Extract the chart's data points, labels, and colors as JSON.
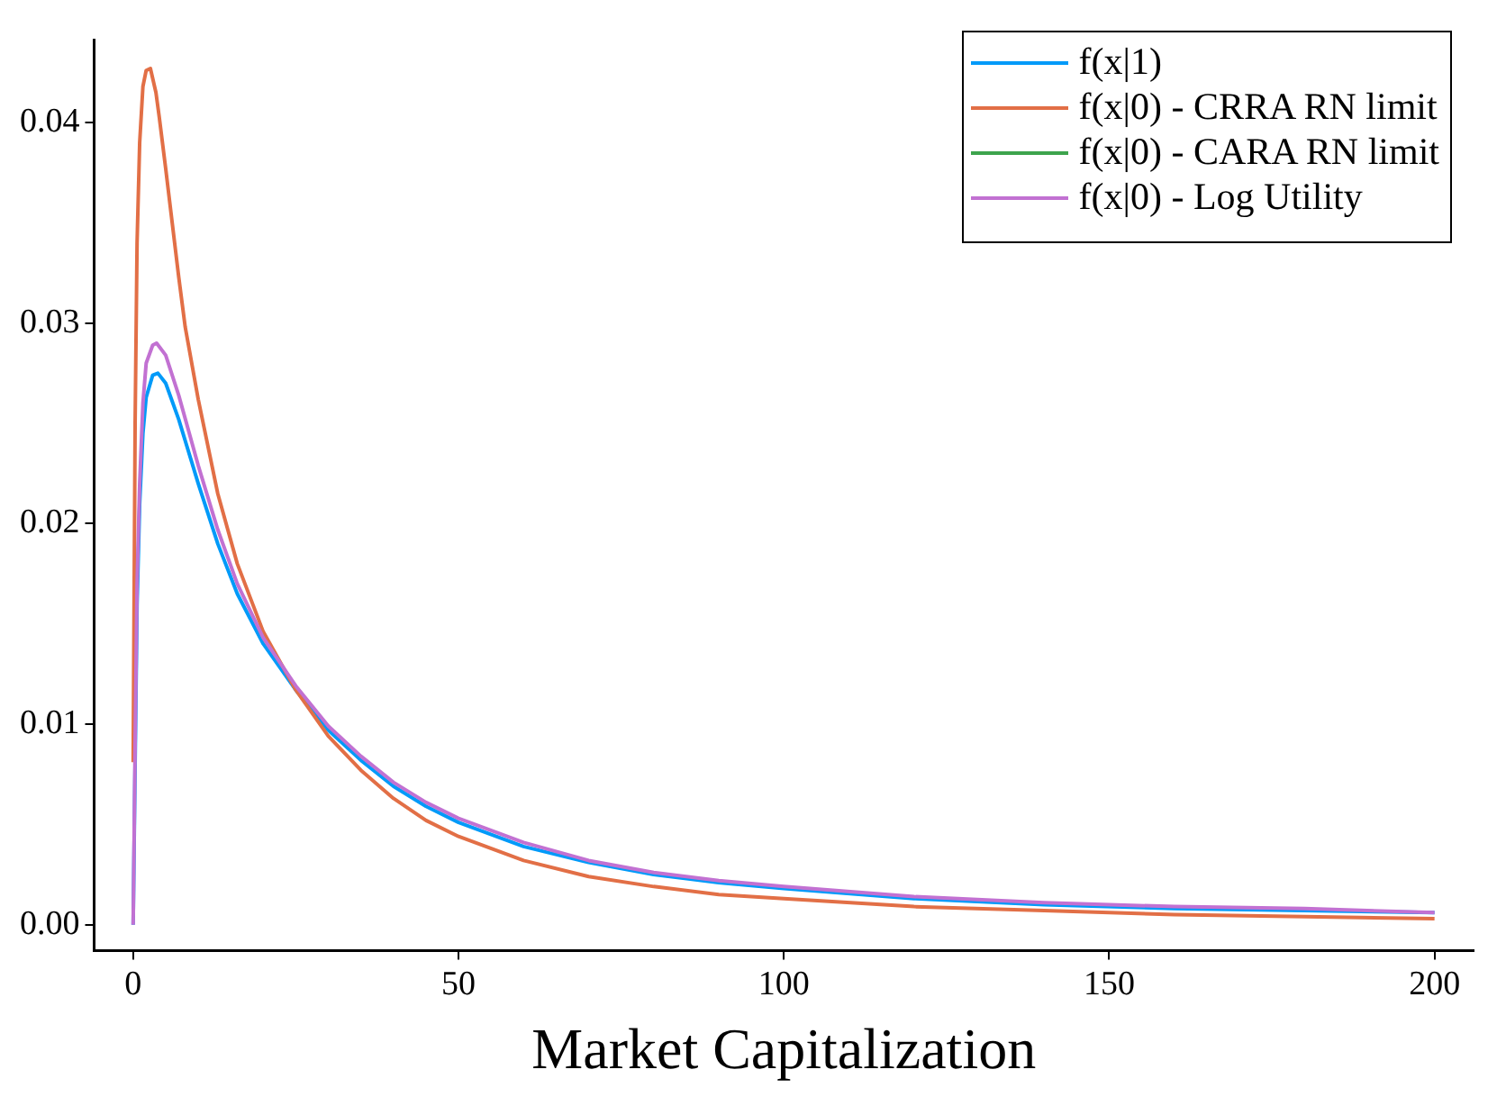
{
  "chart_data": {
    "type": "line",
    "xlabel": "Market Capitalization",
    "xlim": [
      -6,
      206
    ],
    "ylim": [
      -0.0013,
      0.0441
    ],
    "xticks": [
      0,
      50,
      100,
      150,
      200
    ],
    "yticks": [
      {
        "value": 0,
        "label": "0.00"
      },
      {
        "value": 0.01,
        "label": "0.01"
      },
      {
        "value": 0.02,
        "label": "0.02"
      },
      {
        "value": 0.03,
        "label": "0.03"
      },
      {
        "value": 0.04,
        "label": "0.04"
      }
    ],
    "grid": false,
    "legend": "top right",
    "marker": "none",
    "line_style": "solid",
    "series": [
      {
        "name": "f(x|1)",
        "color": "#009af9",
        "x": [
          0,
          0.3,
          0.6,
          1,
          1.5,
          2,
          3,
          3.8,
          5,
          7,
          10,
          13,
          16,
          20,
          25,
          30,
          35,
          40,
          45,
          50,
          60,
          70,
          80,
          90,
          100,
          120,
          140,
          160,
          180,
          200
        ],
        "values": [
          0,
          0.008,
          0.016,
          0.021,
          0.0245,
          0.0263,
          0.0274,
          0.0275,
          0.027,
          0.0252,
          0.022,
          0.019,
          0.0165,
          0.014,
          0.0117,
          0.0097,
          0.0082,
          0.0069,
          0.0059,
          0.0051,
          0.0039,
          0.0031,
          0.0025,
          0.0021,
          0.0018,
          0.0013,
          0.001,
          0.0008,
          0.0007,
          0.0006
        ]
      },
      {
        "name": "f(x|0) - CRRA RN limit",
        "color": "#e26f46",
        "x": [
          0,
          0.3,
          0.6,
          1,
          1.5,
          2,
          2.65,
          3.5,
          4,
          5,
          6,
          7,
          8,
          10,
          13,
          16,
          20,
          25,
          30,
          35,
          40,
          45,
          50,
          60,
          70,
          80,
          90,
          100,
          120,
          140,
          160,
          180,
          200
        ],
        "values": [
          0.0081,
          0.025,
          0.034,
          0.039,
          0.0418,
          0.0426,
          0.0427,
          0.0415,
          0.0403,
          0.0377,
          0.035,
          0.0323,
          0.0298,
          0.0262,
          0.0215,
          0.018,
          0.0146,
          0.0117,
          0.0094,
          0.0077,
          0.0063,
          0.0052,
          0.0044,
          0.0032,
          0.0024,
          0.0019,
          0.0015,
          0.0013,
          0.0009,
          0.0007,
          0.0005,
          0.0004,
          0.0003
        ]
      },
      {
        "name": "f(x|0) - CARA RN limit",
        "color": "#3da44d"
      },
      {
        "name": "f(x|0) - Log Utility",
        "color": "#c271d2",
        "x": [
          0,
          0.3,
          0.6,
          1,
          1.5,
          2,
          3,
          3.6,
          5,
          7,
          10,
          13,
          16,
          20,
          25,
          30,
          35,
          40,
          45,
          50,
          60,
          70,
          80,
          90,
          100,
          120,
          140,
          160,
          180,
          200
        ],
        "values": [
          0,
          0.009,
          0.017,
          0.022,
          0.026,
          0.028,
          0.0289,
          0.029,
          0.0284,
          0.0264,
          0.0229,
          0.0197,
          0.017,
          0.0143,
          0.0119,
          0.0099,
          0.0084,
          0.0071,
          0.0061,
          0.0053,
          0.0041,
          0.0032,
          0.0026,
          0.0022,
          0.0019,
          0.0014,
          0.0011,
          0.0009,
          0.0008,
          0.0006
        ]
      }
    ]
  }
}
